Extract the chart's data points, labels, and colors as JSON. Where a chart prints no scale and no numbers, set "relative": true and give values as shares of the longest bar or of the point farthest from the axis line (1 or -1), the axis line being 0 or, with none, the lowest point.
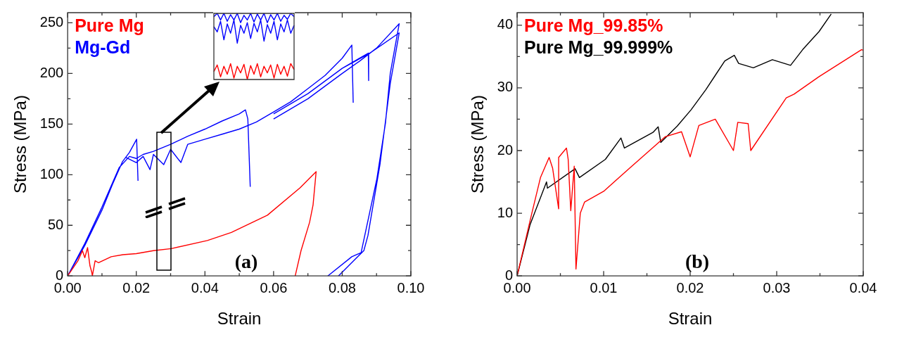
{
  "chart_data": [
    {
      "type": "line",
      "xlabel": "Strain",
      "ylabel": "Stress (MPa)",
      "legend": "top left",
      "grid": false,
      "marker": "none",
      "line_style": "solid",
      "xlim": [
        0,
        0.1
      ],
      "ylim": [
        0,
        260
      ],
      "xticks": [
        {
          "value": 0,
          "label": "0.00"
        },
        {
          "value": 0.01,
          "label": null
        },
        {
          "value": 0.02,
          "label": "0.02"
        },
        {
          "value": 0.03,
          "label": null
        },
        {
          "value": 0.04,
          "label": "0.04"
        },
        {
          "value": 0.05,
          "label": null
        },
        {
          "value": 0.06,
          "label": "0.06"
        },
        {
          "value": 0.07,
          "label": null
        },
        {
          "value": 0.08,
          "label": "0.08"
        },
        {
          "value": 0.09,
          "label": null
        },
        {
          "value": 0.1,
          "label": "0.10"
        }
      ],
      "yticks": [
        0,
        {
          "value": 25,
          "label": null
        },
        50,
        {
          "value": 75,
          "label": null
        },
        100,
        {
          "value": 125,
          "label": null
        },
        150,
        {
          "value": 175,
          "label": null
        },
        200,
        {
          "value": 225,
          "label": null
        },
        250
      ],
      "annotations": [
        "(a)"
      ],
      "series": [
        {
          "name": "Pure Mg",
          "color": "#ff0000",
          "x": [
            0,
            0.003,
            0.0043,
            0.005,
            0.0058,
            0.0065,
            0.007,
            0.0072,
            null,
            0.0072,
            0.008,
            0.009,
            0.0127,
            0.0161,
            0.02,
            0.025,
            0.0302,
            0.0407,
            0.0477,
            0.0582,
            0.0677,
            0.0724,
            0.0715,
            0.0705,
            0.068,
            0.0663
          ],
          "values": [
            0,
            15,
            25,
            18,
            28,
            10,
            4,
            0,
            null,
            0,
            15,
            13,
            19,
            21,
            22,
            25,
            27,
            35,
            43,
            60,
            87,
            103,
            70,
            53,
            25,
            0
          ]
        },
        {
          "name": "Mg-Gd",
          "color": "#0000ff",
          "x": [
            0,
            0.005,
            0.01,
            0.013,
            0.016,
            0.018,
            0.0201,
            0.0205,
            null,
            0,
            0.005,
            0.01,
            0.015,
            0.018,
            0.02,
            0.022,
            0.025,
            0.03,
            0.035,
            0.04,
            0.045,
            0.05,
            0.0518,
            0.0525,
            0.0532,
            null,
            0.017,
            0.02,
            0.022,
            0.024,
            0.025,
            0.028,
            0.03,
            0.033,
            0.035,
            0.04,
            0.045,
            0.05,
            0.055,
            0.06,
            0.065,
            0.07,
            0.075,
            0.08,
            0.0828,
            0.0832,
            null,
            0.06,
            0.07,
            0.08,
            0.085,
            0.0876,
            0.0877,
            null,
            0.06,
            0.07,
            0.08,
            0.085,
            0.09,
            0.0966,
            0.094,
            0.0926,
            0.0901,
            0.0855,
            0.0828,
            0.0758,
            null,
            0.08,
            0.088,
            0.0966,
            0.094,
            0.091,
            0.0875,
            0.0863,
            0.0789
          ],
          "values": [
            0,
            30,
            65,
            90,
            113,
            122,
            135,
            94,
            null,
            0,
            32,
            68,
            107,
            118,
            116,
            120,
            123,
            130,
            138,
            145,
            153,
            160,
            164,
            155,
            88,
            null,
            117,
            112,
            118,
            105,
            120,
            110,
            125,
            112,
            130,
            135,
            140,
            145,
            152,
            162,
            172,
            185,
            198,
            215,
            228,
            171,
            null,
            160,
            180,
            205,
            215,
            220,
            193,
            null,
            155,
            175,
            200,
            212,
            225,
            249,
            200,
            151,
            96,
            23,
            19,
            0,
            null,
            205,
            220,
            240,
            190,
            110,
            40,
            25,
            0
          ]
        }
      ]
    },
    {
      "type": "line",
      "xlabel": "Strain",
      "ylabel": "Stress (MPa)",
      "legend": "top left",
      "grid": false,
      "marker": "none",
      "line_style": "solid",
      "xlim": [
        0,
        0.04
      ],
      "ylim": [
        0,
        42
      ],
      "xticks": [
        {
          "value": 0,
          "label": "0.00"
        },
        {
          "value": 0.005,
          "label": null
        },
        {
          "value": 0.01,
          "label": "0.01"
        },
        {
          "value": 0.015,
          "label": null
        },
        {
          "value": 0.02,
          "label": "0.02"
        },
        {
          "value": 0.025,
          "label": null
        },
        {
          "value": 0.03,
          "label": "0.03"
        },
        {
          "value": 0.035,
          "label": null
        },
        {
          "value": 0.04,
          "label": "0.04"
        }
      ],
      "yticks": [
        0,
        {
          "value": 5,
          "label": null
        },
        10,
        {
          "value": 15,
          "label": null
        },
        20,
        {
          "value": 25,
          "label": null
        },
        30,
        {
          "value": 35,
          "label": null
        },
        40
      ],
      "annotations": [
        "(b)"
      ],
      "series": [
        {
          "name": "Pure Mg_99.85%",
          "color": "#ff0000",
          "x": [
            0,
            0.0017,
            0.0027,
            0.0037,
            0.0041,
            0.0048,
            0.0048,
            0.0057,
            0.0059,
            0.0062,
            0.0066,
            0.0068,
            0.0073,
            0.0078,
            0.01,
            0.013,
            0.0171,
            0.019,
            0.02,
            0.021,
            0.0229,
            0.025,
            0.0255,
            0.0267,
            0.027,
            0.0311,
            0.032,
            0.0349,
            0.0398,
            0.04
          ],
          "values": [
            0,
            10,
            15.7,
            18.9,
            17.2,
            10.7,
            18.9,
            20.4,
            18.6,
            10.4,
            17.5,
            1.1,
            10,
            11.8,
            13.5,
            17.2,
            22.2,
            23,
            19,
            24,
            25,
            20,
            24.5,
            24.3,
            20,
            28.4,
            29,
            31.8,
            36.1,
            36
          ]
        },
        {
          "name": "Pure Mg_99.999%",
          "color": "#000000",
          "x": [
            0,
            0.0015,
            0.0034,
            0.0035,
            0.0067,
            0.0072,
            0.0102,
            0.012,
            0.0124,
            0.0157,
            0.0163,
            0.0166,
            0.0185,
            0.0201,
            0.0218,
            0.024,
            0.0251,
            0.0256,
            0.0273,
            0.0295,
            0.0316,
            0.033,
            0.0349,
            0.0363
          ],
          "values": [
            0,
            8.2,
            15,
            14,
            17.1,
            15.7,
            18.6,
            22,
            20.4,
            22.9,
            23.8,
            21.3,
            23.9,
            26.5,
            29.7,
            34.3,
            35.2,
            33.9,
            33.2,
            34.5,
            33.6,
            36.1,
            39,
            41.8
          ]
        }
      ]
    },
    {
      "type": "line",
      "relative": true,
      "legend": false,
      "grid": false,
      "marker": "none",
      "line_style": "solid",
      "categories": [
        null,
        null,
        null,
        null,
        null,
        null,
        null,
        null,
        null,
        null,
        null,
        null,
        null,
        null,
        null,
        null,
        null,
        null,
        null,
        null,
        null,
        null,
        null,
        null,
        null
      ],
      "series": [
        {
          "color": "#0000ff",
          "values": [
            0.95,
            1,
            0.9,
            1,
            0.88,
            0.98,
            0.9,
            1,
            0.86,
            0.97,
            0.9,
            1,
            0.87,
            0.99,
            0.9,
            1,
            0.86,
            0.98,
            0.9,
            1,
            0.88,
            0.97,
            0.91,
            1,
            0.95
          ]
        },
        {
          "color": "#0000ff",
          "values": [
            0.8,
            0.72,
            0.88,
            0.6,
            0.84,
            0.7,
            0.9,
            0.55,
            0.82,
            0.7,
            0.86,
            0.62,
            0.85,
            0.72,
            0.9,
            0.58,
            0.83,
            0.7,
            0.88,
            0.6,
            0.84,
            0.72,
            0.9,
            0.7,
            0.82
          ]
        },
        {
          "color": "#ff0000",
          "values": [
            0.12,
            0.22,
            0.04,
            0.2,
            0.08,
            0.24,
            0.02,
            0.2,
            0.1,
            0.23,
            0,
            0.21,
            0.08,
            0.24,
            0.04,
            0.2,
            0.1,
            0.22,
            0.02,
            0.23,
            0.08,
            0.2,
            0.05,
            0.24,
            0.15
          ]
        }
      ]
    }
  ]
}
